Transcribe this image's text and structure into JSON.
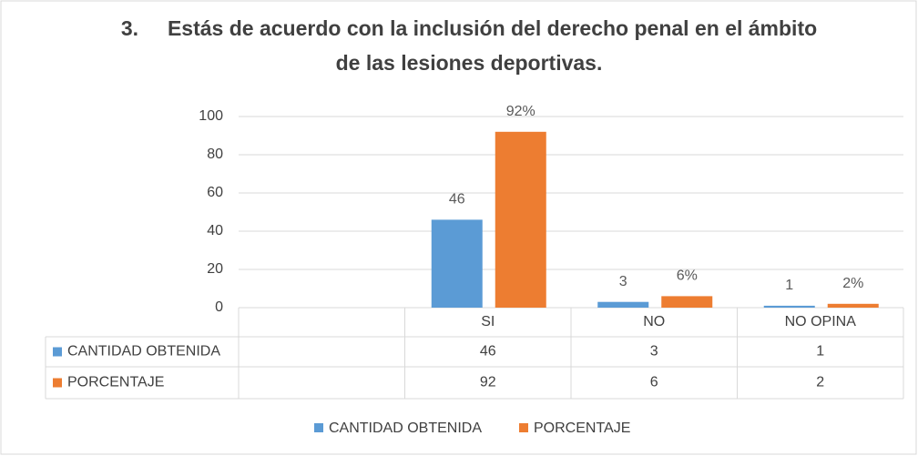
{
  "chart_data": {
    "type": "bar",
    "title": [
      "3.     Estás de acuerdo con la inclusión del derecho penal en el ámbito",
      "de las lesiones deportivas."
    ],
    "categories": [
      null,
      "SI",
      "NO",
      "NO OPINA"
    ],
    "series": [
      {
        "name": "CANTIDAD OBTENIDA",
        "color": "#5b9bd5",
        "values": [
          null,
          46,
          3,
          1
        ]
      },
      {
        "name": "PORCENTAJE",
        "color": "#ed7d31",
        "values": [
          null,
          92,
          6,
          2
        ],
        "value_labels": [
          null,
          "92%",
          "6%",
          "2%"
        ]
      }
    ],
    "ylim": [
      0,
      100
    ],
    "yticks": [
      0,
      20,
      40,
      60,
      80,
      100
    ],
    "grid": true,
    "legend": "bottom",
    "data_table": true
  }
}
